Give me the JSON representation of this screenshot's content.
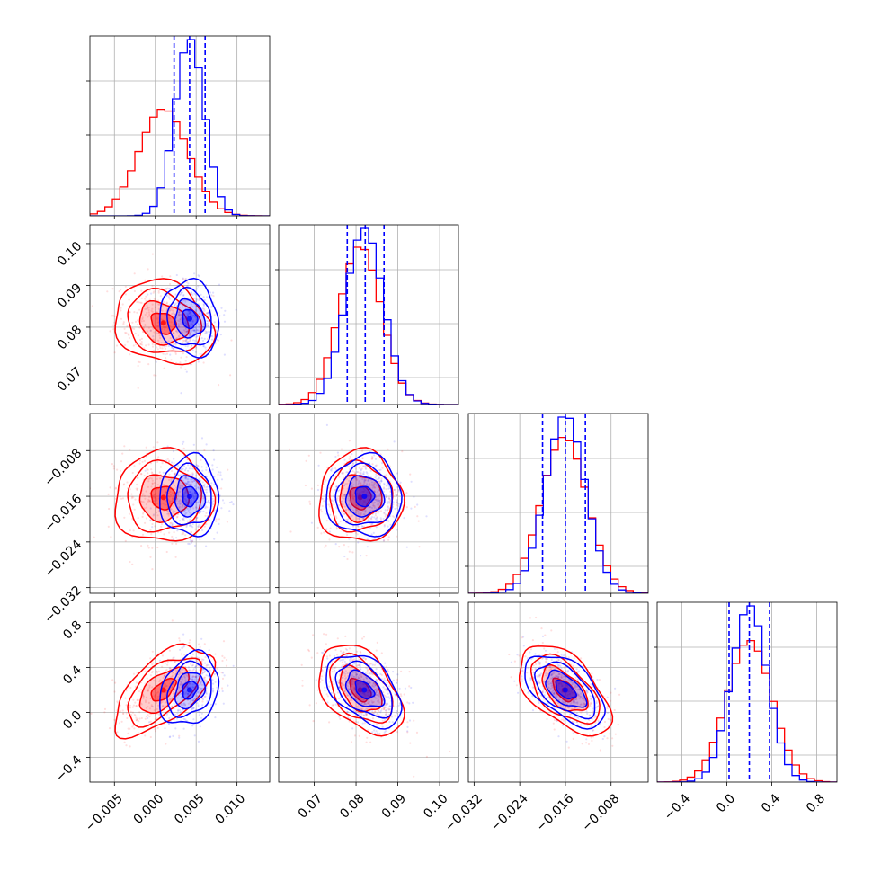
{
  "chart_data": {
    "type": "corner",
    "title": "",
    "parameters": [
      {
        "index": 0,
        "range": [
          -0.008,
          0.014
        ],
        "ticks": [
          -0.005,
          0.0,
          0.005,
          0.01
        ],
        "tick_labels": [
          "−0.005",
          "0.000",
          "0.005",
          "0.010"
        ]
      },
      {
        "index": 1,
        "range": [
          0.0615,
          0.1045
        ],
        "ticks": [
          0.07,
          0.08,
          0.09,
          0.1
        ],
        "tick_labels": [
          "0.07",
          "0.08",
          "0.09",
          "0.10"
        ]
      },
      {
        "index": 2,
        "range": [
          -0.033,
          -0.0015
        ],
        "ticks": [
          -0.032,
          -0.024,
          -0.016,
          -0.008
        ],
        "tick_labels": [
          "−0.032",
          "−0.024",
          "−0.016",
          "−0.008"
        ]
      },
      {
        "index": 3,
        "range": [
          -0.62,
          0.98
        ],
        "ticks": [
          -0.4,
          0.0,
          0.4,
          0.8
        ],
        "tick_labels": [
          "−0.4",
          "0.0",
          "0.4",
          "0.8"
        ]
      }
    ],
    "series": [
      {
        "color": "#0000ff",
        "mean": [
          0.0042,
          0.082,
          -0.016,
          0.2
        ],
        "std": [
          0.0018,
          0.0045,
          0.0035,
          0.16
        ],
        "quantiles": [
          [
            0.0023,
            0.0042,
            0.0061
          ],
          [
            0.0779,
            0.0822,
            0.0867
          ],
          [
            -0.02,
            -0.016,
            -0.0125
          ],
          [
            0.02,
            0.2,
            0.38
          ]
        ]
      },
      {
        "color": "#ff0000",
        "mean": [
          0.001,
          0.081,
          -0.0162,
          0.2
        ],
        "std": [
          0.003,
          0.005,
          0.004,
          0.2
        ]
      }
    ],
    "correlations": {
      "blue": [
        [
          0,
          1,
          -0.1
        ],
        [
          0,
          2,
          0.0
        ],
        [
          0,
          3,
          0.25
        ],
        [
          1,
          2,
          0.0
        ],
        [
          1,
          3,
          -0.45
        ],
        [
          2,
          3,
          -0.55
        ]
      ],
      "red": [
        [
          0,
          1,
          -0.2
        ],
        [
          0,
          2,
          0.0
        ],
        [
          0,
          3,
          0.6
        ],
        [
          1,
          2,
          0.0
        ],
        [
          1,
          3,
          -0.45
        ],
        [
          2,
          3,
          -0.55
        ]
      ]
    },
    "quantile_line_style": "dashed",
    "grid": true,
    "legend": "none"
  }
}
